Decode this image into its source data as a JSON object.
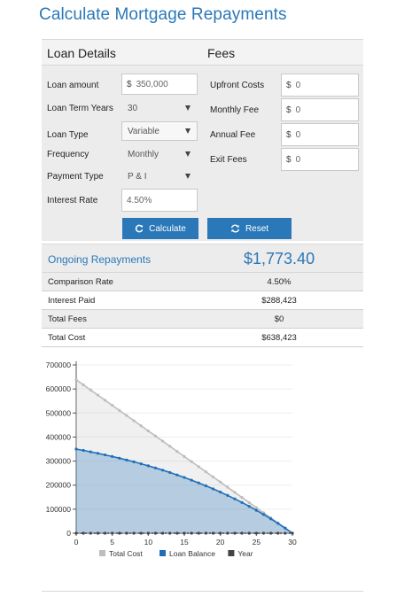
{
  "page": {
    "title": "Calculate Mortgage Repayments"
  },
  "loan_details": {
    "heading": "Loan Details",
    "loan_amount": {
      "label": "Loan amount",
      "prefix": "$",
      "value": "350,000"
    },
    "loan_term": {
      "label": "Loan Term Years",
      "value": "30"
    },
    "loan_type": {
      "label": "Loan Type",
      "value": "Variable"
    },
    "frequency": {
      "label": "Frequency",
      "value": "Monthly"
    },
    "payment_type": {
      "label": "Payment Type",
      "value": "P & I"
    },
    "interest_rate": {
      "label": "Interest Rate",
      "value": "4.50%"
    }
  },
  "fees": {
    "heading": "Fees",
    "upfront": {
      "label": "Upfront Costs",
      "prefix": "$",
      "value": "0"
    },
    "monthly": {
      "label": "Monthly Fee",
      "prefix": "$",
      "value": "0"
    },
    "annual": {
      "label": "Annual Fee",
      "prefix": "$",
      "value": "0"
    },
    "exit": {
      "label": "Exit Fees",
      "prefix": "$",
      "value": "0"
    }
  },
  "buttons": {
    "calculate": "Calculate",
    "reset": "Reset"
  },
  "repayments": {
    "heading": "Ongoing Repayments",
    "amount": "$1,773.40",
    "rows": [
      {
        "label": "Comparison Rate",
        "value": "4.50%"
      },
      {
        "label": "Interest Paid",
        "value": "$288,423"
      },
      {
        "label": "Total Fees",
        "value": "$0"
      },
      {
        "label": "Total Cost",
        "value": "$638,423"
      }
    ]
  },
  "colors": {
    "accent": "#2a78b8",
    "total_cost": "#bdbdbd",
    "loan_balance": "#1f6fb8",
    "year": "#444444"
  },
  "chart_data": {
    "type": "area",
    "x": [
      0,
      1,
      2,
      3,
      4,
      5,
      6,
      7,
      8,
      9,
      10,
      11,
      12,
      13,
      14,
      15,
      16,
      17,
      18,
      19,
      20,
      21,
      22,
      23,
      24,
      25,
      26,
      27,
      28,
      29,
      30
    ],
    "xticks": [
      0,
      5,
      10,
      15,
      20,
      25,
      30
    ],
    "ylim": [
      0,
      700000
    ],
    "yticks": [
      0,
      100000,
      200000,
      300000,
      400000,
      500000,
      600000,
      700000
    ],
    "ytick_labels": [
      "0",
      "100000",
      "200000",
      "300000",
      "400000",
      "500000",
      "600000",
      "700000"
    ],
    "legend_position": "bottom",
    "grid": true,
    "series": [
      {
        "name": "Total Cost",
        "values": [
          638423,
          617142,
          595861,
          574580,
          553299,
          532018,
          510737,
          489456,
          468175,
          446894,
          425613,
          404332,
          383051,
          361770,
          340489,
          319208,
          297927,
          276646,
          255365,
          234084,
          212803,
          191522,
          170241,
          148960,
          127679,
          106398,
          85117,
          63836,
          42555,
          21274,
          0
        ]
      },
      {
        "name": "Loan Balance",
        "values": [
          350000,
          344357,
          338456,
          332284,
          325829,
          319077,
          312015,
          304629,
          296904,
          288824,
          280373,
          271534,
          262289,
          252619,
          242505,
          231927,
          220863,
          209291,
          197187,
          184528,
          171287,
          157438,
          142954,
          127805,
          111960,
          95388,
          78055,
          59925,
          40963,
          21130,
          0
        ]
      },
      {
        "name": "Year",
        "values": [
          0,
          0,
          0,
          0,
          0,
          0,
          0,
          0,
          0,
          0,
          0,
          0,
          0,
          0,
          0,
          0,
          0,
          0,
          0,
          0,
          0,
          0,
          0,
          0,
          0,
          0,
          0,
          0,
          0,
          0,
          0
        ]
      }
    ]
  }
}
